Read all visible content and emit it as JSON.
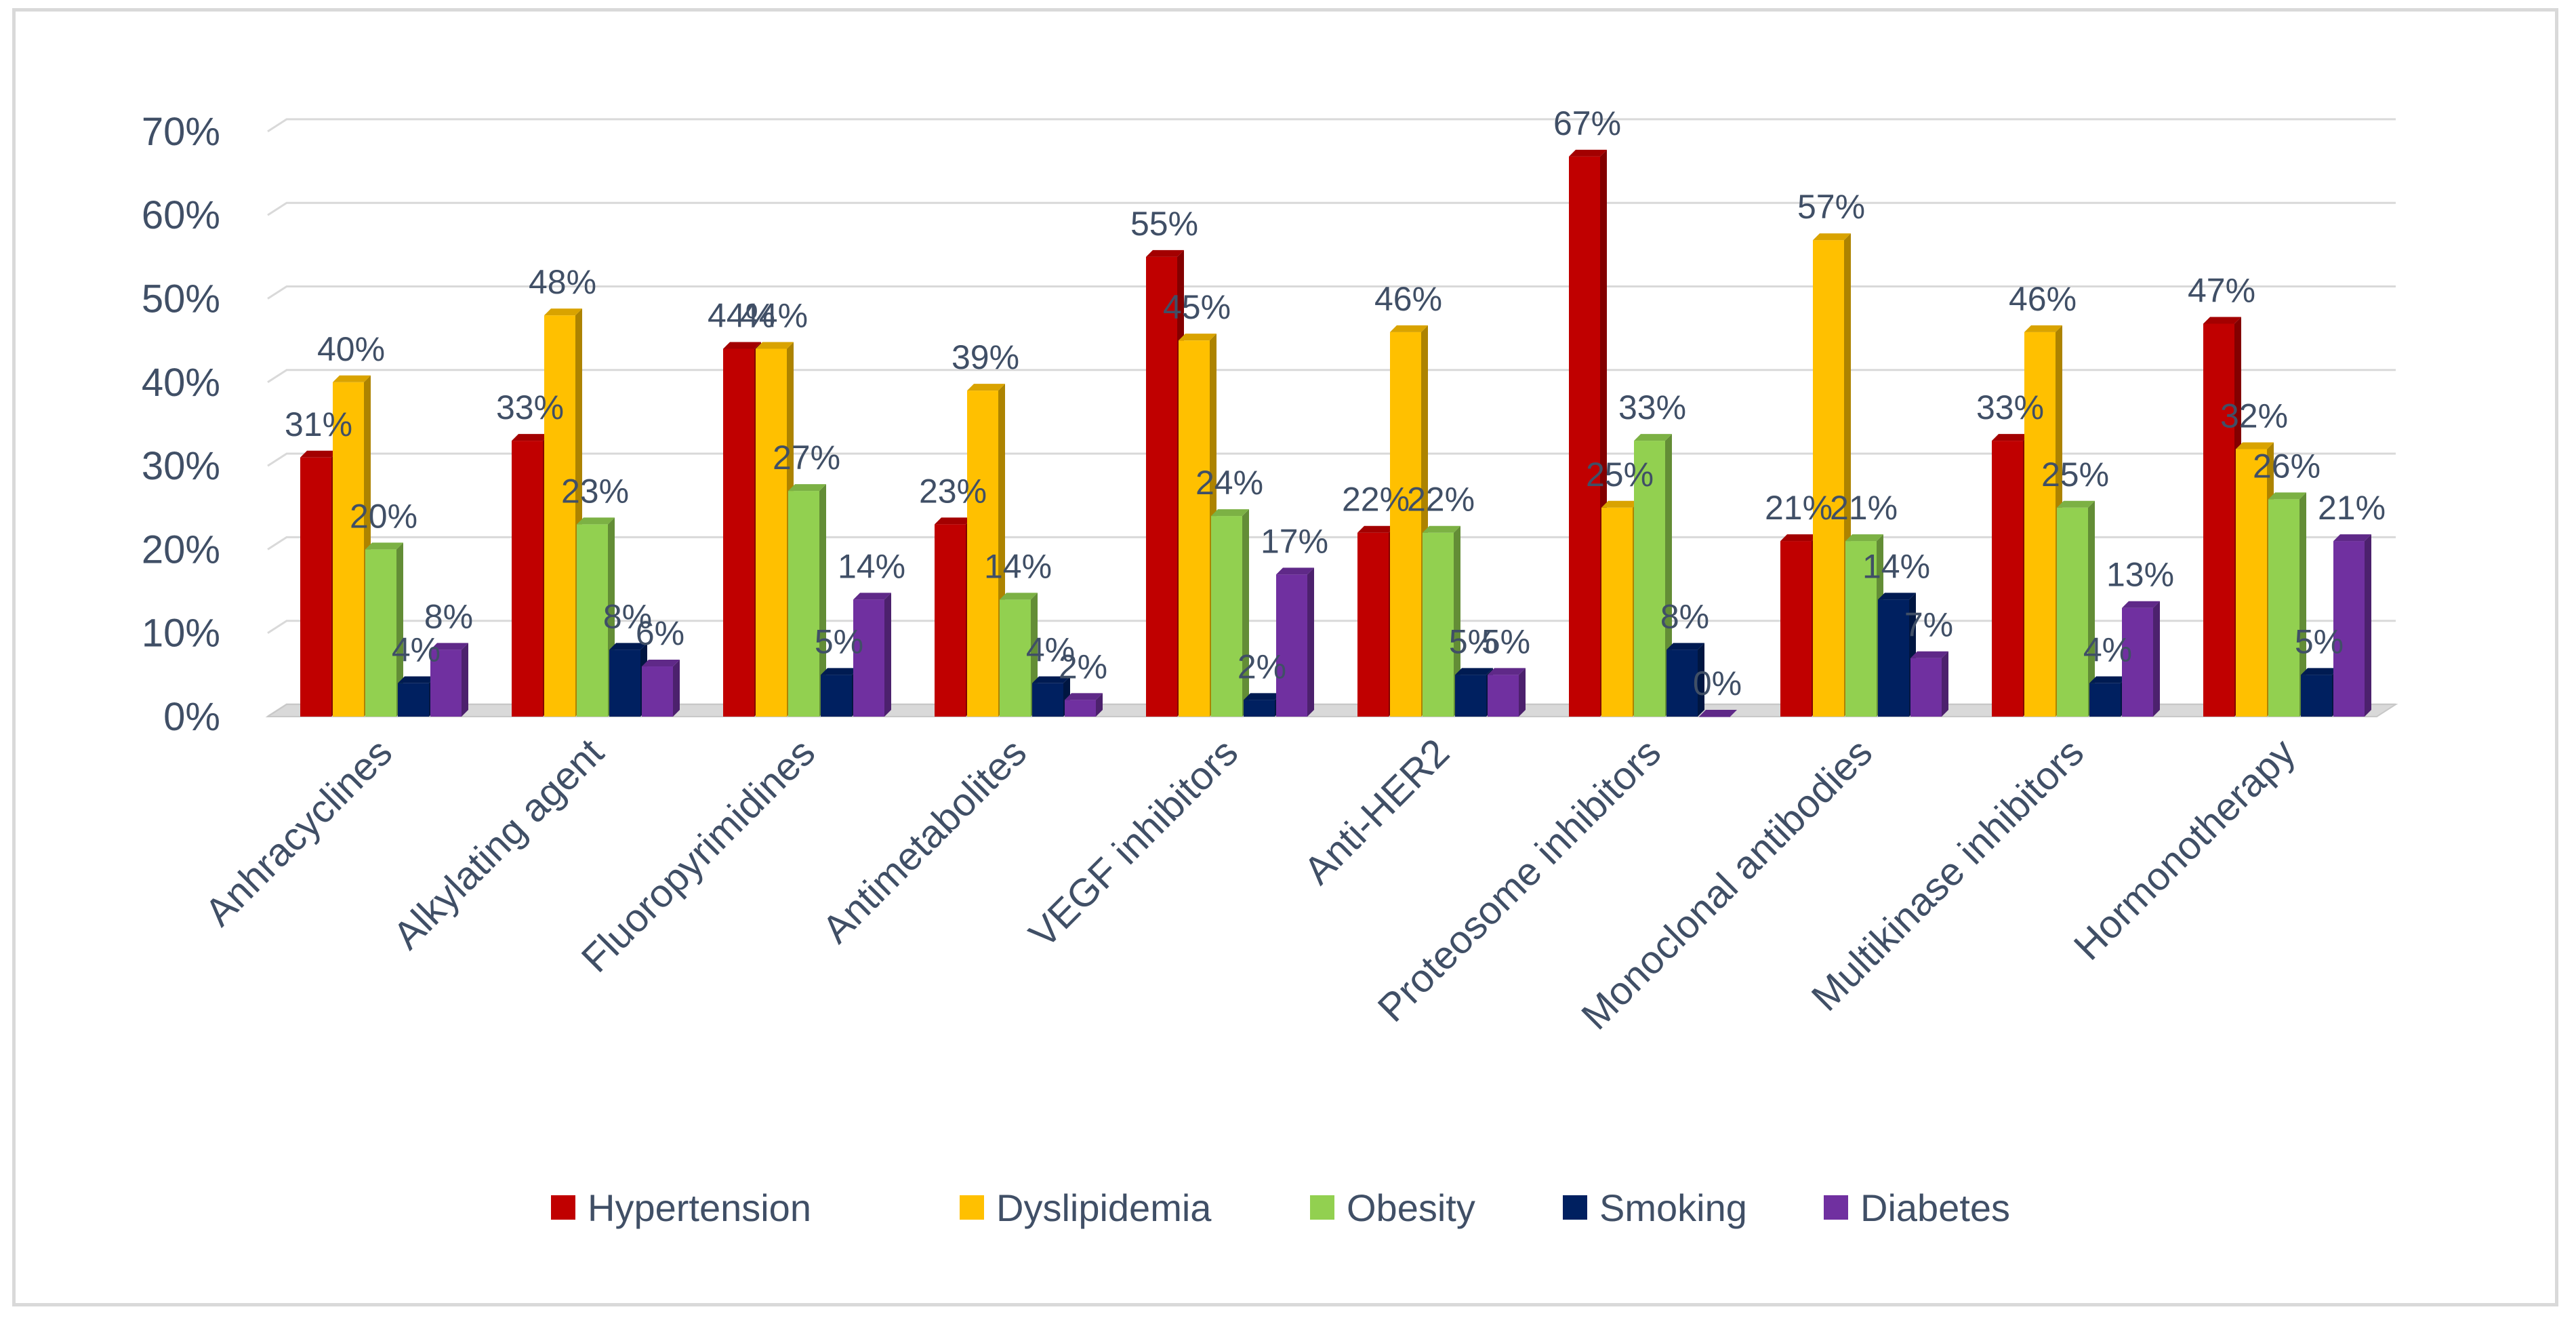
{
  "chart_data": {
    "type": "bar",
    "style": "3d-clustered-column",
    "categories": [
      "Anhracyclines",
      "Alkylating agent",
      "Fluoropyrimidines",
      "Antimetabolites",
      "VEGF inhibitors",
      "Anti-HER2",
      "Proteosome inhibitors",
      "Monoclonal antibodies",
      "Multikinase inhibitors",
      "Hormonotherapy"
    ],
    "series": [
      {
        "name": "Hypertension",
        "color": "#c00000",
        "values": [
          31,
          33,
          44,
          23,
          55,
          22,
          67,
          21,
          33,
          47
        ],
        "labels": [
          "31%",
          "33%",
          "44%",
          "23%",
          "55%",
          "22%",
          "67%",
          "21%",
          "33%",
          "47%"
        ]
      },
      {
        "name": "Dyslipidemia",
        "color": "#ffc000",
        "values": [
          40,
          48,
          44,
          39,
          45,
          46,
          25,
          57,
          46,
          32
        ],
        "labels": [
          "40%",
          "48%",
          "44%",
          "39%",
          "45%",
          "46%",
          "25%",
          "57%",
          "46%",
          "32%"
        ]
      },
      {
        "name": "Obesity",
        "color": "#92d050",
        "values": [
          20,
          23,
          27,
          14,
          24,
          22,
          33,
          21,
          25,
          26
        ],
        "labels": [
          "20%",
          "23%",
          "27%",
          "14%",
          "24%",
          "22%",
          "33%",
          "21%",
          "25%",
          "26%"
        ]
      },
      {
        "name": "Smoking",
        "color": "#002060",
        "values": [
          4,
          8,
          5,
          4,
          2,
          5,
          8,
          14,
          4,
          5
        ],
        "labels": [
          "4%",
          "8%",
          "5%",
          "4%",
          "2%",
          "5%",
          "8%",
          "14%",
          "4%",
          "5%"
        ]
      },
      {
        "name": "Diabetes",
        "color": "#7030a0",
        "values": [
          8,
          6,
          14,
          2,
          17,
          5,
          0,
          7,
          13,
          21
        ],
        "labels": [
          "8%",
          "6%",
          "14%",
          "2%",
          "17%",
          "5%",
          "0%",
          "7%",
          "13%",
          "21%"
        ]
      }
    ],
    "ylim": [
      0,
      70
    ],
    "yticks": [
      0,
      10,
      20,
      30,
      40,
      50,
      60,
      70
    ],
    "ytick_labels": [
      "0%",
      "10%",
      "20%",
      "30%",
      "40%",
      "50%",
      "60%",
      "70%"
    ],
    "grid": true,
    "legend": "bottom",
    "title": "",
    "xlabel": "",
    "ylabel": ""
  }
}
